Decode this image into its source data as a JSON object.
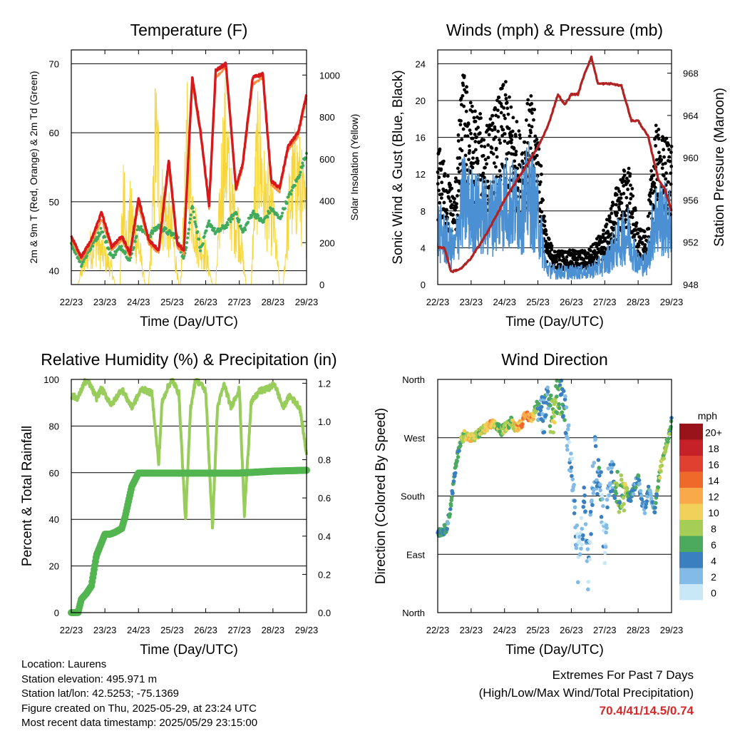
{
  "x_ticks": [
    "22/23",
    "23/23",
    "24/23",
    "25/23",
    "26/23",
    "27/23",
    "28/23",
    "29/23"
  ],
  "chart_data": [
    {
      "type": "line",
      "title": "Temperature (F)",
      "xlabel": "Time (Day/UTC)",
      "ylabel": "2m & 9m T (Red, Orange) & 2m Td (Green)",
      "y2label": "Solar Insolation (Yellow)",
      "ylim": [
        38,
        72
      ],
      "y_ticks": [
        40,
        50,
        60,
        70
      ],
      "y2lim": [
        0,
        1120
      ],
      "y2_ticks": [
        0,
        200,
        400,
        600,
        800,
        1000
      ],
      "grid": true,
      "series": [
        {
          "color": "#d7191c",
          "axis": "left",
          "x": [
            0,
            0.3,
            0.6,
            0.9,
            1.2,
            1.5,
            1.75,
            2.0,
            2.3,
            2.6,
            2.9,
            3.15,
            3.35,
            3.6,
            3.85,
            4.1,
            4.3,
            4.6,
            4.9,
            5.1,
            5.4,
            5.7,
            5.95,
            6.2,
            6.45,
            6.75,
            7.0
          ],
          "y": [
            45,
            42,
            44.5,
            48.5,
            43.5,
            45,
            42.5,
            50.5,
            44.5,
            43,
            56,
            44,
            43,
            68,
            60,
            49.5,
            69,
            70,
            52,
            55.5,
            68,
            68.5,
            53,
            52,
            58,
            60,
            65.5
          ]
        },
        {
          "color": "#fd8d3c",
          "axis": "left",
          "x": [
            0,
            0.3,
            0.6,
            0.9,
            1.2,
            1.5,
            1.75,
            2.0,
            2.3,
            2.6,
            2.9,
            3.15,
            3.35,
            3.6,
            3.85,
            4.1,
            4.3,
            4.6,
            4.9,
            5.1,
            5.4,
            5.7,
            5.95,
            6.2,
            6.45,
            6.75,
            7.0
          ],
          "y": [
            44.5,
            41.5,
            44,
            47.5,
            43,
            44.5,
            42,
            49.5,
            44,
            42.5,
            55,
            43.5,
            42.5,
            67,
            59.5,
            49,
            68,
            69.5,
            51.5,
            55,
            67,
            68,
            52.5,
            51.5,
            57.5,
            59.5,
            65
          ]
        },
        {
          "color": "#41ab5d",
          "axis": "left",
          "x": [
            0,
            0.3,
            0.6,
            0.9,
            1.2,
            1.5,
            1.75,
            2.0,
            2.3,
            2.6,
            2.9,
            3.15,
            3.35,
            3.6,
            3.85,
            4.1,
            4.3,
            4.6,
            4.9,
            5.1,
            5.4,
            5.7,
            5.95,
            6.2,
            6.45,
            6.75,
            7.0
          ],
          "y": [
            44,
            41,
            43.5,
            46,
            42,
            43.5,
            41.5,
            46.5,
            45,
            46.5,
            45.5,
            45,
            41.5,
            49.5,
            43,
            47,
            45.5,
            46.5,
            48.5,
            45.5,
            48.5,
            47,
            49,
            47.5,
            50.5,
            53.5,
            57
          ]
        },
        {
          "color": "#f6d53d",
          "axis": "right",
          "x": [
            0.0,
            0.2,
            0.3,
            0.4,
            0.5,
            0.75,
            1.0,
            1.2,
            1.3,
            1.45,
            1.5,
            1.6,
            1.65,
            1.75,
            2.0,
            2.2,
            2.3,
            2.45,
            2.5,
            2.7,
            3.0,
            3.2,
            3.25,
            3.45,
            3.55,
            3.75,
            4.0,
            4.2,
            4.3,
            4.5,
            4.6,
            4.75,
            5.0,
            5.2,
            5.35,
            5.5,
            5.6,
            5.75,
            6.0,
            6.2,
            6.3,
            6.5,
            6.6,
            6.75,
            7.0
          ],
          "y": [
            0,
            0,
            100,
            150,
            250,
            320,
            200,
            120,
            0,
            0,
            400,
            850,
            250,
            500,
            300,
            0,
            0,
            620,
            1100,
            600,
            380,
            0,
            0,
            980,
            700,
            320,
            220,
            0,
            0,
            900,
            1050,
            600,
            400,
            0,
            0,
            850,
            1000,
            650,
            500,
            0,
            0,
            620,
            750,
            800,
            480
          ]
        }
      ]
    },
    {
      "type": "scatter",
      "title": "Winds (mph) & Pressure (mb)",
      "xlabel": "Time (Day/UTC)",
      "ylabel": "Sonic Wind & Gust (Blue, Black)",
      "y2label": "Station Pressure (Maroon)",
      "ylim": [
        0,
        25.5
      ],
      "y_ticks": [
        0,
        4,
        8,
        12,
        16,
        20,
        24
      ],
      "y2lim": [
        948,
        970.2
      ],
      "y2_ticks": [
        948,
        952,
        956,
        960,
        964,
        968
      ],
      "grid": true,
      "series": [
        {
          "color": "#000000",
          "kind": "gust-dots",
          "x": [
            0,
            0.5,
            0.75,
            1.0,
            1.5,
            2.0,
            2.5,
            2.75,
            3.0,
            3.25,
            3.5,
            4.0,
            4.5,
            5.0,
            5.4,
            5.7,
            6.0,
            6.25,
            6.5,
            6.75,
            7.0
          ],
          "y": [
            12.5,
            8,
            19,
            16,
            14,
            18,
            13,
            17,
            14,
            4.5,
            3,
            3,
            3,
            5,
            9,
            11,
            5,
            4.5,
            14,
            13,
            13
          ]
        },
        {
          "color": "#4a90d2",
          "kind": "wind-line",
          "x": [
            0,
            0.5,
            0.75,
            1.0,
            1.5,
            2.0,
            2.5,
            2.75,
            3.0,
            3.25,
            3.5,
            4.0,
            4.5,
            5.0,
            5.4,
            5.7,
            6.0,
            6.25,
            6.5,
            6.75,
            7.0
          ],
          "y": [
            6.5,
            4,
            10,
            9,
            8,
            10,
            9,
            11,
            8,
            2,
            1.5,
            1.5,
            1.5,
            2.5,
            5,
            6,
            2.5,
            2.5,
            8,
            8,
            7
          ]
        },
        {
          "color": "#b22222",
          "kind": "pressure-line",
          "x": [
            0,
            0.2,
            0.4,
            0.7,
            1.0,
            1.5,
            2.0,
            2.5,
            3.0,
            3.3,
            3.6,
            3.8,
            4.0,
            4.2,
            4.4,
            4.6,
            4.8,
            5.0,
            5.2,
            5.5,
            5.8,
            6.0,
            6.3,
            6.6,
            6.8,
            7.0
          ],
          "y": [
            951.5,
            951.5,
            949.2,
            949.5,
            950.5,
            953,
            956,
            958.5,
            961,
            963,
            966,
            965,
            966,
            966,
            968,
            969.5,
            967,
            967,
            967,
            966.8,
            963.5,
            963.5,
            962,
            958,
            957,
            955
          ]
        }
      ]
    },
    {
      "type": "line",
      "title": "Relative Humidity (%) & Precipitation (in)",
      "xlabel": "Time (Day/UTC)",
      "ylabel": "Percent & Total Rainfall",
      "ylim": [
        0,
        100
      ],
      "y_ticks": [
        0,
        20,
        40,
        60,
        80,
        100
      ],
      "y2lim": [
        0,
        1.22
      ],
      "y2_ticks": [
        0.0,
        0.2,
        0.4,
        0.6,
        0.8,
        1.0,
        1.2
      ],
      "grid": true,
      "series": [
        {
          "color": "#98cc5b",
          "axis": "left",
          "x": [
            0,
            0.2,
            0.4,
            0.55,
            0.75,
            0.9,
            1.2,
            1.5,
            1.8,
            2.1,
            2.4,
            2.6,
            2.7,
            2.85,
            3.0,
            3.2,
            3.4,
            3.55,
            3.7,
            3.85,
            4.0,
            4.2,
            4.35,
            4.55,
            4.75,
            5.0,
            5.15,
            5.35,
            5.6,
            5.85,
            6.05,
            6.3,
            6.5,
            6.8,
            7.0
          ],
          "y": [
            93,
            92,
            99,
            98,
            92,
            96,
            89,
            96,
            88,
            96,
            94,
            64,
            90,
            96,
            100,
            94,
            39,
            88,
            100,
            98,
            95,
            36,
            88,
            98,
            88,
            96,
            42,
            90,
            95,
            96,
            98,
            88,
            93,
            88,
            68
          ]
        },
        {
          "color": "#52b550",
          "axis": "right",
          "x": [
            0,
            0.2,
            0.3,
            0.45,
            0.6,
            0.75,
            1.0,
            1.15,
            1.3,
            1.5,
            1.6,
            1.8,
            2.0,
            2.25,
            2.5,
            3.0,
            4.0,
            5.0,
            6.0,
            7.0
          ],
          "y": [
            0,
            0,
            0.07,
            0.1,
            0.14,
            0.3,
            0.41,
            0.41,
            0.42,
            0.44,
            0.5,
            0.66,
            0.73,
            0.73,
            0.73,
            0.73,
            0.73,
            0.73,
            0.74,
            0.745
          ]
        }
      ]
    },
    {
      "type": "scatter",
      "title": "Wind Direction",
      "xlabel": "Time (Day/UTC)",
      "ylabel": "Direction (Colored By Speed)",
      "y_ticks": [
        "North",
        "East",
        "South",
        "West",
        "North"
      ],
      "ylim": [
        0,
        360
      ],
      "colorbar": {
        "title": "mph",
        "labels": [
          "20+",
          "18",
          "16",
          "14",
          "12",
          "10",
          "8",
          "6",
          "4",
          "2",
          "0"
        ],
        "colors": [
          "#99141a",
          "#c62028",
          "#e04030",
          "#ef6a2a",
          "#f9a94a",
          "#f2d15a",
          "#a6cd55",
          "#4caa5e",
          "#3a80c1",
          "#82bce6",
          "#c8e8f8"
        ]
      },
      "points": [
        {
          "x": 0.1,
          "dir": 125,
          "speed": 5
        },
        {
          "x": 0.25,
          "dir": 130,
          "speed": 5
        },
        {
          "x": 0.35,
          "dir": 150,
          "speed": 4
        },
        {
          "x": 0.5,
          "dir": 210,
          "speed": 5
        },
        {
          "x": 0.65,
          "dir": 260,
          "speed": 6
        },
        {
          "x": 0.8,
          "dir": 275,
          "speed": 9
        },
        {
          "x": 0.95,
          "dir": 270,
          "speed": 11
        },
        {
          "x": 1.1,
          "dir": 270,
          "speed": 8
        },
        {
          "x": 1.25,
          "dir": 278,
          "speed": 7
        },
        {
          "x": 1.45,
          "dir": 285,
          "speed": 10
        },
        {
          "x": 1.6,
          "dir": 290,
          "speed": 12
        },
        {
          "x": 1.75,
          "dir": 290,
          "speed": 8
        },
        {
          "x": 1.9,
          "dir": 280,
          "speed": 6
        },
        {
          "x": 2.05,
          "dir": 288,
          "speed": 9
        },
        {
          "x": 2.2,
          "dir": 295,
          "speed": 7
        },
        {
          "x": 2.35,
          "dir": 285,
          "speed": 11
        },
        {
          "x": 2.5,
          "dir": 292,
          "speed": 12
        },
        {
          "x": 2.65,
          "dir": 305,
          "speed": 13
        },
        {
          "x": 2.8,
          "dir": 300,
          "speed": 12
        },
        {
          "x": 2.9,
          "dir": 310,
          "speed": 9
        },
        {
          "x": 3.05,
          "dir": 330,
          "speed": 3
        },
        {
          "x": 3.15,
          "dir": 300,
          "speed": 2
        },
        {
          "x": 3.3,
          "dir": 320,
          "speed": 4
        },
        {
          "x": 3.45,
          "dir": 305,
          "speed": 8
        },
        {
          "x": 3.6,
          "dir": 345,
          "speed": 6
        },
        {
          "x": 3.75,
          "dir": 330,
          "speed": 5
        },
        {
          "x": 3.95,
          "dir": 250,
          "speed": 2
        },
        {
          "x": 4.05,
          "dir": 200,
          "speed": 2
        },
        {
          "x": 4.1,
          "dir": 150,
          "speed": 3
        },
        {
          "x": 4.2,
          "dir": 80,
          "speed": 1
        },
        {
          "x": 4.3,
          "dir": 120,
          "speed": 1
        },
        {
          "x": 4.4,
          "dir": 175,
          "speed": 3
        },
        {
          "x": 4.5,
          "dir": 60,
          "speed": 2
        },
        {
          "x": 4.6,
          "dir": 160,
          "speed": 2
        },
        {
          "x": 4.7,
          "dir": 240,
          "speed": 2
        },
        {
          "x": 4.8,
          "dir": 210,
          "speed": 4
        },
        {
          "x": 4.9,
          "dir": 180,
          "speed": 3
        },
        {
          "x": 5.0,
          "dir": 100,
          "speed": 1
        },
        {
          "x": 5.1,
          "dir": 190,
          "speed": 2
        },
        {
          "x": 5.2,
          "dir": 230,
          "speed": 3
        },
        {
          "x": 5.35,
          "dir": 190,
          "speed": 7
        },
        {
          "x": 5.5,
          "dir": 180,
          "speed": 6
        },
        {
          "x": 5.6,
          "dir": 195,
          "speed": 9
        },
        {
          "x": 5.75,
          "dir": 175,
          "speed": 5
        },
        {
          "x": 5.9,
          "dir": 195,
          "speed": 4
        },
        {
          "x": 6.0,
          "dir": 210,
          "speed": 4
        },
        {
          "x": 6.1,
          "dir": 175,
          "speed": 3
        },
        {
          "x": 6.2,
          "dir": 160,
          "speed": 3
        },
        {
          "x": 6.3,
          "dir": 190,
          "speed": 4
        },
        {
          "x": 6.4,
          "dir": 175,
          "speed": 3
        },
        {
          "x": 6.5,
          "dir": 160,
          "speed": 4
        },
        {
          "x": 6.6,
          "dir": 200,
          "speed": 7
        },
        {
          "x": 6.7,
          "dir": 230,
          "speed": 9
        },
        {
          "x": 6.8,
          "dir": 250,
          "speed": 8
        },
        {
          "x": 6.9,
          "dir": 270,
          "speed": 7
        },
        {
          "x": 7.0,
          "dir": 295,
          "speed": 6
        }
      ]
    }
  ],
  "info": {
    "location": "Location: Laurens",
    "elevation": "Station elevation: 495.971 m",
    "latlon": "Station lat/lon: 42.5253; -75.1369",
    "created": "Figure created on Thu, 2025-05-29, at 23:24 UTC",
    "recent": "Most recent data timestamp: 2025/05/29 23:15:00"
  },
  "extremes": {
    "line1": "Extremes For Past 7 Days",
    "line2": "(High/Low/Max Wind/Total Precipitation)",
    "value": "70.4/41/14.5/0.74"
  }
}
